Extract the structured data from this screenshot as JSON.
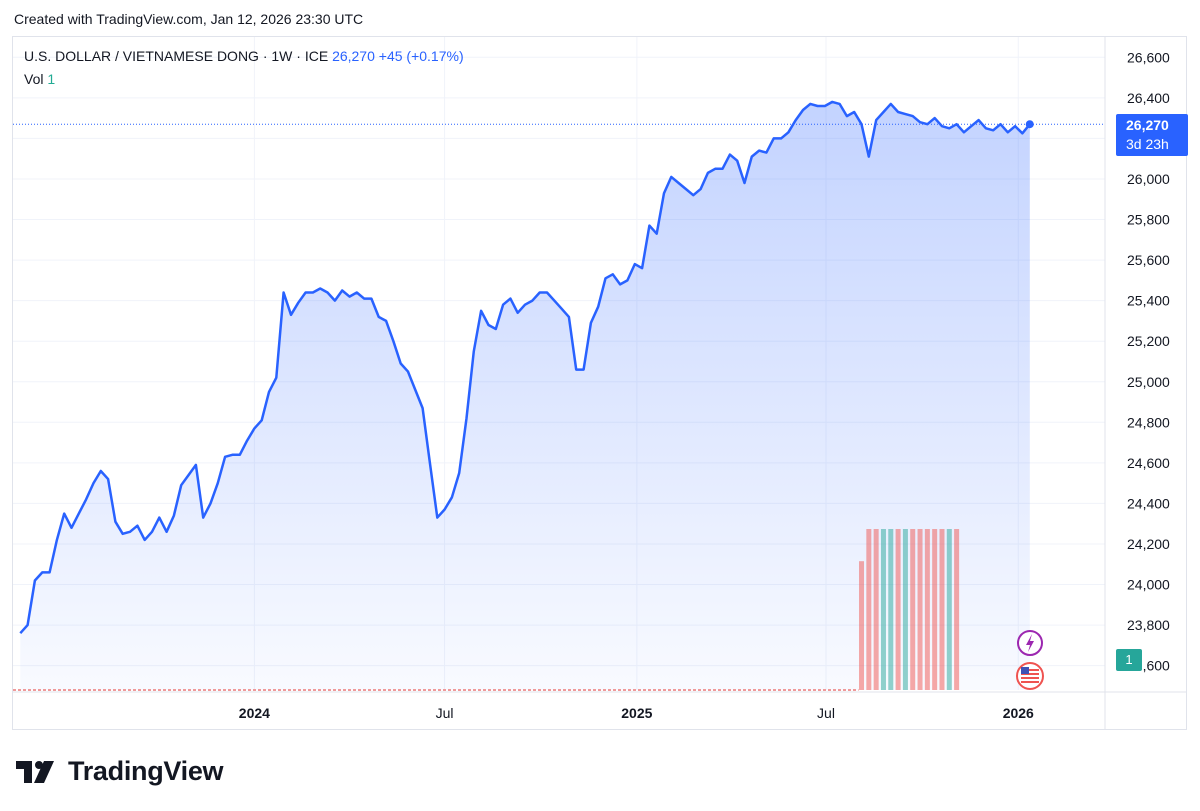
{
  "header": {
    "created_with": "Created with TradingView.com, Jan 12, 2026 23:30 UTC"
  },
  "legend": {
    "symbol": "U.S. DOLLAR / VIETNAMESE DONG · 1W · ICE",
    "price": "26,270",
    "change": "+45 (+0.17%)",
    "vol_label": "Vol",
    "vol_value": "1"
  },
  "price_tag": {
    "value": "26,270",
    "countdown": "3d 23h"
  },
  "vol_tag": {
    "value": "1"
  },
  "logo": {
    "text": "TradingView"
  },
  "colors": {
    "line": "#2962ff",
    "area": "#2962ff",
    "vol_up": "#26a69a",
    "vol_down": "#ef5350"
  },
  "chart_data": {
    "type": "area",
    "title": "U.S. DOLLAR / VIETNAMESE DONG · 1W · ICE",
    "ylim": [
      23480,
      26700
    ],
    "y_ticks": [
      23600,
      23800,
      24000,
      24200,
      24400,
      24600,
      24800,
      25000,
      25200,
      25400,
      25600,
      25800,
      26000,
      26200,
      26400,
      26600
    ],
    "y_tick_labels": [
      "23,600",
      "23,800",
      "24,000",
      "24,200",
      "24,400",
      "24,600",
      "24,800",
      "25,000",
      "25,200",
      "25,400",
      "25,600",
      "25,800",
      "26,000",
      "26,200",
      "26,400",
      "26,600"
    ],
    "x_ticks": [
      {
        "date": "2024-01-01",
        "label": "2024",
        "bold": true
      },
      {
        "date": "2024-07-01",
        "label": "Jul",
        "bold": false
      },
      {
        "date": "2025-01-01",
        "label": "2025",
        "bold": true
      },
      {
        "date": "2025-07-01",
        "label": "Jul",
        "bold": false
      },
      {
        "date": "2026-01-01",
        "label": "2026",
        "bold": true
      }
    ],
    "x_range": [
      "2023-05-15",
      "2026-03-25"
    ],
    "grid": true,
    "series": [
      {
        "name": "USD/VND",
        "points": [
          [
            "2023-05-22",
            23760
          ],
          [
            "2023-05-29",
            23800
          ],
          [
            "2023-06-05",
            24020
          ],
          [
            "2023-06-12",
            24060
          ],
          [
            "2023-06-19",
            24060
          ],
          [
            "2023-06-26",
            24220
          ],
          [
            "2023-07-03",
            24350
          ],
          [
            "2023-07-10",
            24280
          ],
          [
            "2023-07-17",
            24350
          ],
          [
            "2023-07-24",
            24420
          ],
          [
            "2023-07-31",
            24500
          ],
          [
            "2023-08-07",
            24560
          ],
          [
            "2023-08-14",
            24520
          ],
          [
            "2023-08-21",
            24310
          ],
          [
            "2023-08-28",
            24250
          ],
          [
            "2023-09-04",
            24260
          ],
          [
            "2023-09-11",
            24290
          ],
          [
            "2023-09-18",
            24220
          ],
          [
            "2023-09-25",
            24260
          ],
          [
            "2023-10-02",
            24330
          ],
          [
            "2023-10-09",
            24260
          ],
          [
            "2023-10-16",
            24340
          ],
          [
            "2023-10-23",
            24490
          ],
          [
            "2023-10-30",
            24540
          ],
          [
            "2023-11-06",
            24590
          ],
          [
            "2023-11-13",
            24330
          ],
          [
            "2023-11-20",
            24400
          ],
          [
            "2023-11-27",
            24500
          ],
          [
            "2023-12-04",
            24630
          ],
          [
            "2023-12-11",
            24640
          ],
          [
            "2023-12-18",
            24640
          ],
          [
            "2023-12-25",
            24710
          ],
          [
            "2024-01-01",
            24770
          ],
          [
            "2024-01-08",
            24810
          ],
          [
            "2024-01-15",
            24950
          ],
          [
            "2024-01-22",
            25020
          ],
          [
            "2024-01-29",
            25440
          ],
          [
            "2024-02-05",
            25330
          ],
          [
            "2024-02-12",
            25390
          ],
          [
            "2024-02-19",
            25440
          ],
          [
            "2024-02-26",
            25440
          ],
          [
            "2024-03-04",
            25460
          ],
          [
            "2024-03-11",
            25440
          ],
          [
            "2024-03-18",
            25400
          ],
          [
            "2024-03-25",
            25450
          ],
          [
            "2024-04-01",
            25420
          ],
          [
            "2024-04-08",
            25440
          ],
          [
            "2024-04-15",
            25410
          ],
          [
            "2024-04-22",
            25410
          ],
          [
            "2024-04-29",
            25320
          ],
          [
            "2024-05-06",
            25300
          ],
          [
            "2024-05-13",
            25200
          ],
          [
            "2024-05-20",
            25090
          ],
          [
            "2024-05-27",
            25050
          ],
          [
            "2024-06-03",
            24960
          ],
          [
            "2024-06-10",
            24870
          ],
          [
            "2024-06-17",
            24600
          ],
          [
            "2024-06-24",
            24330
          ],
          [
            "2024-07-01",
            24370
          ],
          [
            "2024-07-08",
            24430
          ],
          [
            "2024-07-15",
            24550
          ],
          [
            "2024-07-22",
            24820
          ],
          [
            "2024-07-29",
            25150
          ],
          [
            "2024-08-05",
            25350
          ],
          [
            "2024-08-12",
            25280
          ],
          [
            "2024-08-19",
            25260
          ],
          [
            "2024-08-26",
            25380
          ],
          [
            "2024-09-02",
            25410
          ],
          [
            "2024-09-09",
            25340
          ],
          [
            "2024-09-16",
            25380
          ],
          [
            "2024-09-23",
            25400
          ],
          [
            "2024-09-30",
            25440
          ],
          [
            "2024-10-07",
            25440
          ],
          [
            "2024-10-14",
            25400
          ],
          [
            "2024-10-21",
            25360
          ],
          [
            "2024-10-28",
            25320
          ],
          [
            "2024-11-04",
            25060
          ],
          [
            "2024-11-11",
            25060
          ],
          [
            "2024-11-18",
            25290
          ],
          [
            "2024-11-25",
            25370
          ],
          [
            "2024-12-02",
            25510
          ],
          [
            "2024-12-09",
            25530
          ],
          [
            "2024-12-16",
            25480
          ],
          [
            "2024-12-23",
            25500
          ],
          [
            "2024-12-30",
            25580
          ],
          [
            "2025-01-06",
            25560
          ],
          [
            "2025-01-13",
            25770
          ],
          [
            "2025-01-20",
            25730
          ],
          [
            "2025-01-27",
            25930
          ],
          [
            "2025-02-03",
            26010
          ],
          [
            "2025-02-10",
            25980
          ],
          [
            "2025-02-17",
            25950
          ],
          [
            "2025-02-24",
            25920
          ],
          [
            "2025-03-03",
            25950
          ],
          [
            "2025-03-10",
            26030
          ],
          [
            "2025-03-17",
            26050
          ],
          [
            "2025-03-24",
            26050
          ],
          [
            "2025-03-31",
            26120
          ],
          [
            "2025-04-07",
            26090
          ],
          [
            "2025-04-14",
            25980
          ],
          [
            "2025-04-21",
            26110
          ],
          [
            "2025-04-28",
            26140
          ],
          [
            "2025-05-05",
            26130
          ],
          [
            "2025-05-12",
            26200
          ],
          [
            "2025-05-19",
            26200
          ],
          [
            "2025-05-26",
            26230
          ],
          [
            "2025-06-02",
            26290
          ],
          [
            "2025-06-09",
            26340
          ],
          [
            "2025-06-16",
            26370
          ],
          [
            "2025-06-23",
            26360
          ],
          [
            "2025-06-30",
            26360
          ],
          [
            "2025-07-07",
            26380
          ],
          [
            "2025-07-14",
            26370
          ],
          [
            "2025-07-21",
            26310
          ],
          [
            "2025-07-28",
            26330
          ],
          [
            "2025-08-04",
            26270
          ],
          [
            "2025-08-11",
            26110
          ],
          [
            "2025-08-18",
            26290
          ],
          [
            "2025-08-25",
            26330
          ],
          [
            "2025-09-01",
            26370
          ],
          [
            "2025-09-08",
            26330
          ],
          [
            "2025-09-15",
            26320
          ],
          [
            "2025-09-22",
            26310
          ],
          [
            "2025-09-29",
            26280
          ],
          [
            "2025-10-06",
            26270
          ],
          [
            "2025-10-13",
            26300
          ],
          [
            "2025-10-20",
            26260
          ],
          [
            "2025-10-27",
            26250
          ],
          [
            "2025-11-03",
            26270
          ],
          [
            "2025-11-10",
            26230
          ],
          [
            "2025-11-17",
            26260
          ],
          [
            "2025-11-24",
            26290
          ],
          [
            "2025-12-01",
            26250
          ],
          [
            "2025-12-08",
            26240
          ],
          [
            "2025-12-15",
            26270
          ],
          [
            "2025-12-22",
            26230
          ],
          [
            "2025-12-29",
            26260
          ],
          [
            "2026-01-05",
            26225
          ],
          [
            "2026-01-12",
            26270
          ]
        ]
      }
    ],
    "current_value": 26270,
    "volume": {
      "max": 1,
      "bars": [
        [
          "2025-08-04",
          0.8,
          "down"
        ],
        [
          "2025-08-11",
          1,
          "down"
        ],
        [
          "2025-08-18",
          1,
          "down"
        ],
        [
          "2025-08-25",
          1,
          "up"
        ],
        [
          "2025-09-01",
          1,
          "up"
        ],
        [
          "2025-09-08",
          1,
          "down"
        ],
        [
          "2025-09-15",
          1,
          "up"
        ],
        [
          "2025-09-22",
          1,
          "down"
        ],
        [
          "2025-09-29",
          1,
          "down"
        ],
        [
          "2025-10-06",
          1,
          "down"
        ],
        [
          "2025-10-13",
          1,
          "down"
        ],
        [
          "2025-10-20",
          1,
          "down"
        ],
        [
          "2025-10-27",
          1,
          "up"
        ],
        [
          "2025-11-03",
          1,
          "down"
        ]
      ]
    },
    "volume_last": 1
  }
}
